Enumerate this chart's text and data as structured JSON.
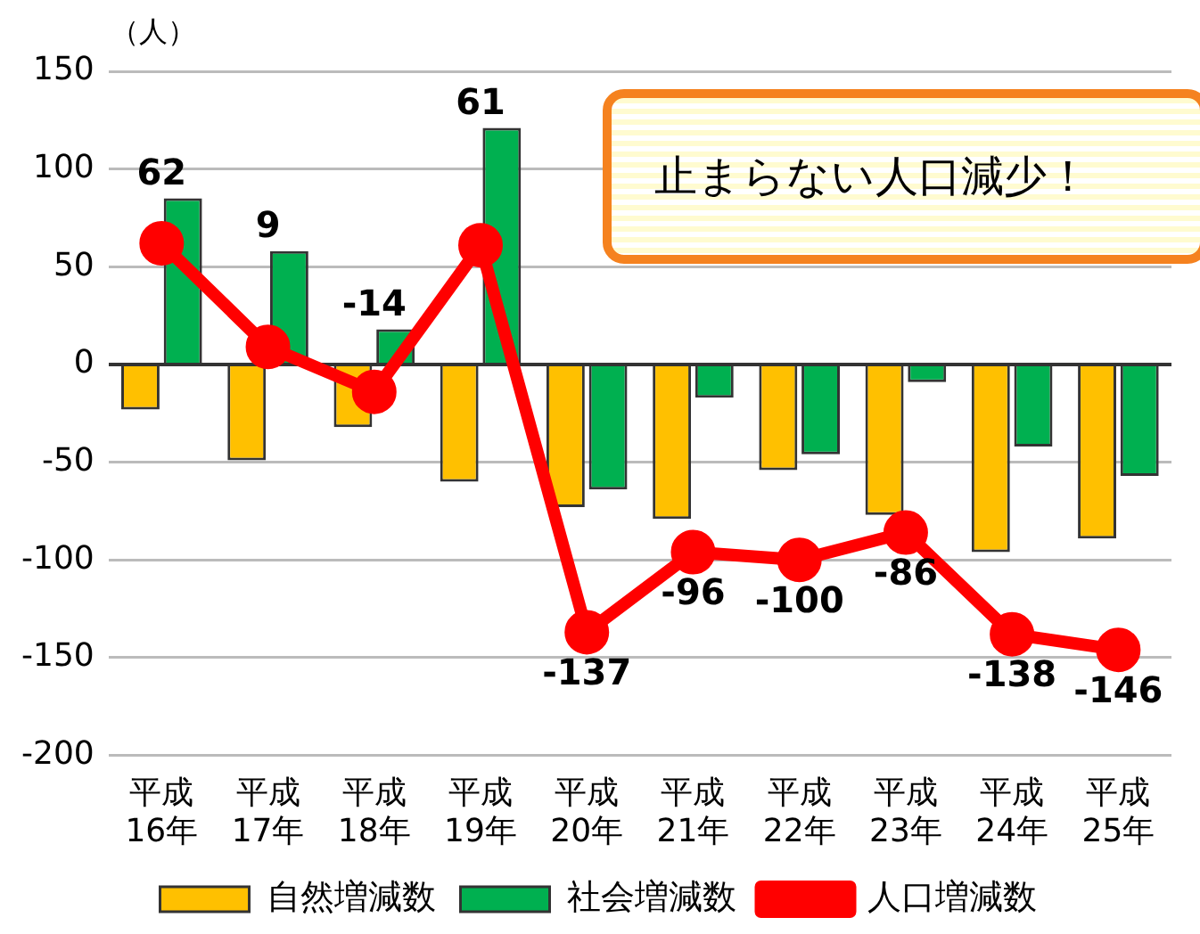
{
  "chart_data": {
    "type": "bar",
    "ylabel": "（人）",
    "categories": [
      "平成 16年",
      "平成 17年",
      "平成 18年",
      "平成 19年",
      "平成 20年",
      "平成 21年",
      "平成 22年",
      "平成 23年",
      "平成 24年",
      "平成 25年"
    ],
    "series": [
      {
        "name": "自然増減数",
        "color": "#ffc000",
        "values": [
          -23,
          -49,
          -32,
          -60,
          -73,
          -79,
          -54,
          -77,
          -96,
          -89
        ]
      },
      {
        "name": "社会増減数",
        "color": "#00b050",
        "values": [
          85,
          58,
          18,
          121,
          -64,
          -17,
          -46,
          -9,
          -42,
          -57
        ]
      },
      {
        "name": "人口増減数",
        "type": "line",
        "color": "#ff0000",
        "marker": "circle",
        "values": [
          62,
          9,
          -14,
          61,
          -137,
          -96,
          -100,
          -86,
          -138,
          -146
        ],
        "value_labels": [
          "62",
          "9",
          "-14",
          "61",
          "-137",
          "-96",
          "-100",
          "-86",
          "-138",
          "-146"
        ]
      }
    ],
    "ylim": [
      -200,
      150
    ],
    "yticks": [
      -200,
      -150,
      -100,
      -50,
      0,
      50,
      100,
      150
    ],
    "grid": "y",
    "legend": "bottom",
    "annotations": [
      "止まらない人口減少！"
    ]
  }
}
